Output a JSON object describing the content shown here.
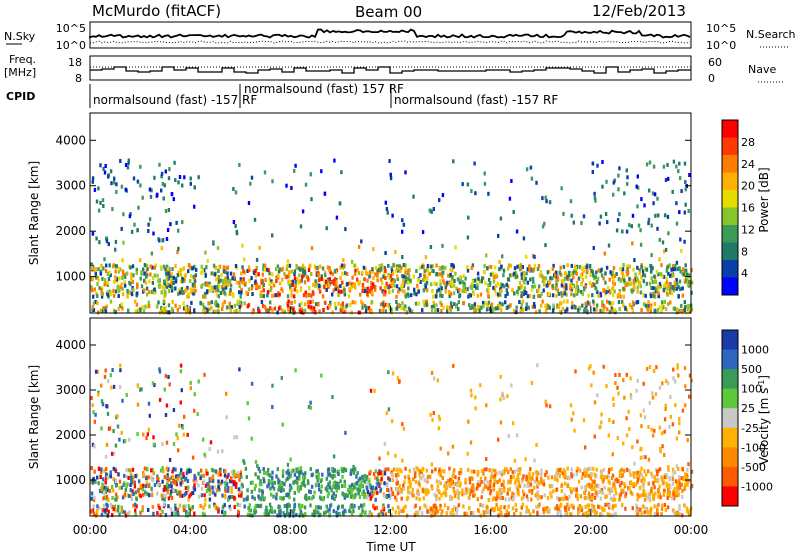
{
  "header": {
    "station": "McMurdo (fitACF)",
    "beam": "Beam 00",
    "date": "12/Feb/2013"
  },
  "noise_panel": {
    "left_label": "N.Sky",
    "right_label": "N.Search",
    "left_ticks": [
      "10^5",
      "10^0"
    ],
    "right_ticks": [
      "10^5",
      "10^0"
    ]
  },
  "freq_panel": {
    "left_label_line1": "Freq.",
    "left_label_line2": "[MHz]",
    "right_label": "Nave",
    "left_ticks": [
      "18",
      "8"
    ],
    "right_ticks": [
      "60",
      "0"
    ]
  },
  "cpid": {
    "label": "CPID",
    "segments": [
      {
        "text": "normalsound (fast) -157 RF"
      },
      {
        "text": "normalsound (fast) 157 RF"
      },
      {
        "text": "normalsound (fast) -157 RF"
      }
    ]
  },
  "time_axis": {
    "ticks": [
      "00:00",
      "04:00",
      "08:00",
      "12:00",
      "16:00",
      "20:00",
      "00:00"
    ],
    "label": "Time UT"
  },
  "chart_data": [
    {
      "type": "heatmap",
      "ylabel": "Slant Range [km]",
      "y_ticks": [
        "1000",
        "2000",
        "3000",
        "4000"
      ],
      "ylim": [
        200,
        4600
      ],
      "x_range_hours": [
        0,
        24
      ],
      "colorbar": {
        "label": "Power [dB]",
        "ticks": [
          "28",
          "24",
          "20",
          "16",
          "12",
          "8",
          "4"
        ],
        "colors": [
          "#ff0000",
          "#ff3a00",
          "#ff7a00",
          "#ffb000",
          "#e6dc00",
          "#86c62c",
          "#3a9a56",
          "#1f7a6a",
          "#0a3ea8",
          "#0000ff"
        ]
      }
    },
    {
      "type": "heatmap",
      "ylabel": "Slant Range [km]",
      "y_ticks": [
        "1000",
        "2000",
        "3000",
        "4000"
      ],
      "ylim": [
        200,
        4600
      ],
      "x_range_hours": [
        0,
        24
      ],
      "colorbar": {
        "label": "Velocity [m s^-1]",
        "label_main": "Velocity [m s",
        "label_sup": "-1",
        "label_end": "]",
        "ticks": [
          "1000",
          "500",
          "100",
          "25",
          "-25",
          "-100",
          "-500",
          "-1000"
        ],
        "colors": [
          "#1a3aa8",
          "#2e66c0",
          "#3a9a56",
          "#5cc83a",
          "#c8c8c8",
          "#ffb000",
          "#ff8a00",
          "#ff5a00",
          "#ff0000"
        ]
      }
    }
  ]
}
